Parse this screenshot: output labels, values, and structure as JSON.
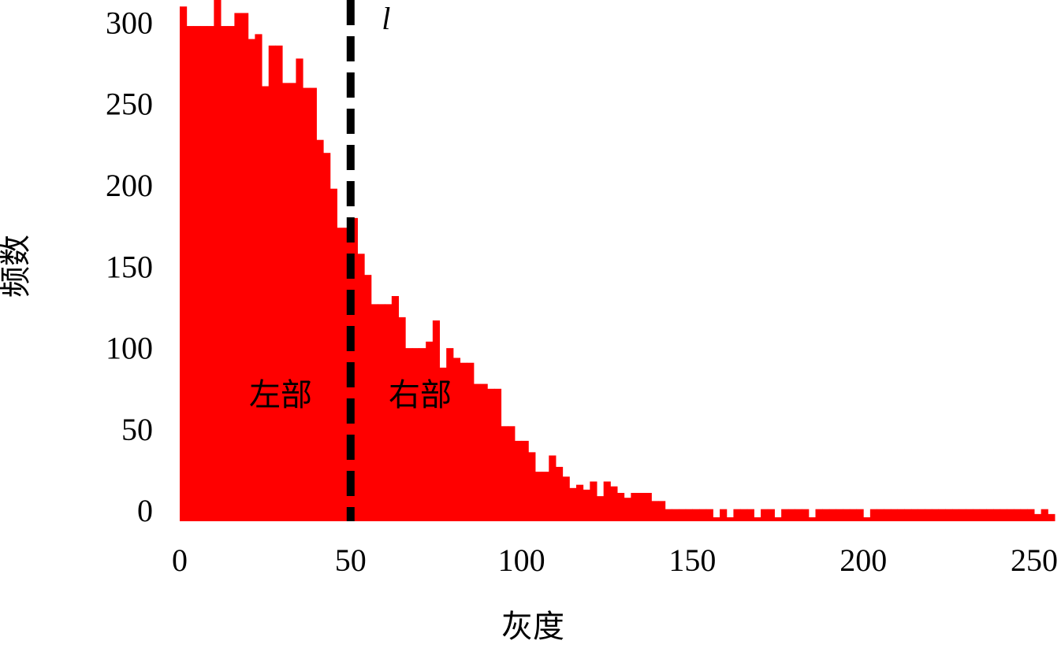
{
  "chart_data": {
    "type": "histogram",
    "xlabel": "灰度",
    "ylabel": "频数",
    "bins": [
      0,
      2,
      4,
      6,
      8,
      10,
      12,
      14,
      16,
      18,
      20,
      22,
      24,
      26,
      28,
      30,
      32,
      34,
      36,
      38,
      40,
      42,
      44,
      46,
      48,
      50,
      52,
      54,
      56,
      58,
      60,
      62,
      64,
      66,
      68,
      70,
      72,
      74,
      76,
      78,
      80,
      82,
      84,
      86,
      88,
      90,
      92,
      94,
      96,
      98,
      100,
      102,
      104,
      106,
      108,
      110,
      112,
      114,
      116,
      118,
      120,
      122,
      124,
      126,
      128,
      130,
      132,
      134,
      136,
      138,
      140,
      142,
      144,
      146,
      148,
      150,
      152,
      154,
      156,
      158,
      160,
      162,
      164,
      166,
      168,
      170,
      172,
      174,
      176,
      178,
      180,
      182,
      184,
      186,
      188,
      190,
      192,
      194,
      196,
      198,
      200,
      202,
      204,
      206,
      208,
      210,
      212,
      214,
      216,
      218,
      220,
      222,
      224,
      226,
      228,
      230,
      232,
      234,
      236,
      238,
      240,
      242,
      244,
      246,
      248,
      250,
      252,
      254,
      256
    ],
    "counts": [
      314,
      302,
      302,
      302,
      302,
      318,
      302,
      302,
      310,
      310,
      294,
      297,
      265,
      290,
      290,
      267,
      267,
      282,
      264,
      264,
      232,
      224,
      202,
      178,
      178,
      184,
      162,
      149,
      131,
      131,
      131,
      136,
      123,
      104,
      104,
      104,
      108,
      121,
      92,
      104,
      98,
      95,
      95,
      82,
      82,
      79,
      79,
      56,
      56,
      47,
      47,
      40,
      28,
      28,
      38,
      31,
      25,
      18,
      20,
      17,
      22,
      13,
      22,
      19,
      15,
      12,
      15,
      15,
      15,
      10,
      10,
      5,
      5,
      5,
      5,
      5,
      5,
      5,
      0,
      5,
      0,
      5,
      5,
      5,
      0,
      5,
      5,
      0,
      5,
      5,
      5,
      5,
      0,
      5,
      5,
      5,
      5,
      5,
      5,
      5,
      0,
      5,
      5,
      5,
      5,
      5,
      5,
      5,
      5,
      5,
      5,
      5,
      5,
      5,
      5,
      5,
      5,
      5,
      5,
      5,
      5,
      5,
      5,
      5,
      5,
      2,
      5,
      2
    ],
    "color": "#ff0000",
    "xlim": [
      0,
      256
    ],
    "ylim": [
      0,
      318
    ],
    "xticks": [
      0,
      50,
      100,
      150,
      200,
      250
    ],
    "yticks": [
      0,
      50,
      100,
      150,
      200,
      250,
      300
    ],
    "vline": {
      "x": 50,
      "label": "l",
      "color": "#000000"
    },
    "annotations": [
      "左部",
      "右部"
    ]
  }
}
